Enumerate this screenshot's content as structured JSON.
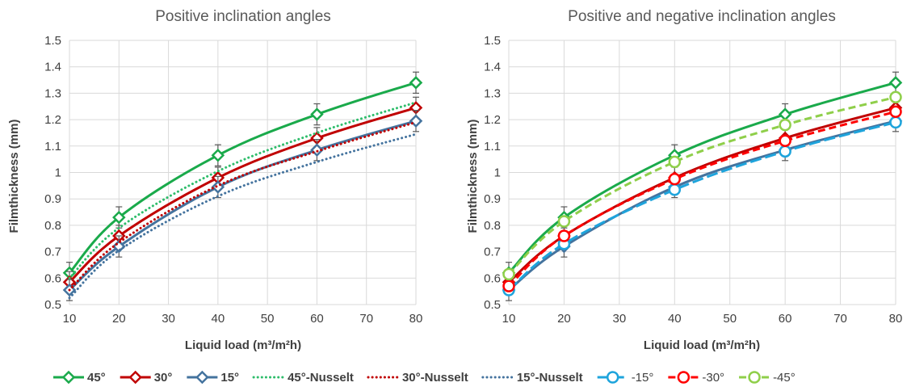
{
  "chart_data": [
    {
      "type": "line",
      "title": "Positive inclination angles",
      "xlabel": "Liquid load (m³/m²h)",
      "ylabel": "Filmthickness (mm)",
      "xlim": [
        10,
        80
      ],
      "ylim": [
        0.5,
        1.5
      ],
      "x_ticks": [
        "10",
        "20",
        "30",
        "40",
        "50",
        "60",
        "70",
        "80"
      ],
      "y_ticks": [
        "0.5",
        "0.6",
        "0.7",
        "0.8",
        "0.9",
        "1",
        "1.1",
        "1.2",
        "1.3",
        "1.4",
        "1.5"
      ],
      "grid": true,
      "series": [
        {
          "name": "45°",
          "color": "#1aaa4b",
          "style": "solid",
          "marker": "diamond",
          "x": [
            10,
            20,
            40,
            60,
            80
          ],
          "y": [
            0.62,
            0.83,
            1.065,
            1.22,
            1.34
          ],
          "err": [
            0.04,
            0.04,
            0.04,
            0.04,
            0.04
          ]
        },
        {
          "name": "30°",
          "color": "#c00000",
          "style": "solid",
          "marker": "diamond",
          "x": [
            10,
            20,
            40,
            60,
            80
          ],
          "y": [
            0.585,
            0.76,
            0.98,
            1.13,
            1.245
          ],
          "err": [
            0.04,
            0.04,
            0.04,
            0.04,
            0.04
          ]
        },
        {
          "name": "15°",
          "color": "#44739e",
          "style": "solid",
          "marker": "diamond",
          "x": [
            10,
            20,
            40,
            60,
            80
          ],
          "y": [
            0.555,
            0.72,
            0.945,
            1.085,
            1.195
          ],
          "err": [
            0.04,
            0.04,
            0.04,
            0.04,
            0.04
          ]
        },
        {
          "name": "45°-Nusselt",
          "color": "#2ebd6b",
          "style": "dotted",
          "marker": "none",
          "x": [
            10,
            20,
            40,
            60,
            80
          ],
          "y": [
            0.6,
            0.79,
            1.005,
            1.15,
            1.265
          ]
        },
        {
          "name": "30°-Nusselt",
          "color": "#c00000",
          "style": "dotted",
          "marker": "none",
          "x": [
            10,
            20,
            40,
            60,
            80
          ],
          "y": [
            0.555,
            0.735,
            0.95,
            1.08,
            1.19
          ]
        },
        {
          "name": "15°-Nusselt",
          "color": "#44739e",
          "style": "dotted",
          "marker": "none",
          "x": [
            10,
            20,
            40,
            60,
            80
          ],
          "y": [
            0.525,
            0.705,
            0.91,
            1.04,
            1.145
          ]
        }
      ]
    },
    {
      "type": "line",
      "title": "Positive and negative inclination angles",
      "xlabel": "Liquid load (m³/m²h)",
      "ylabel": "Filmthickness (mm)",
      "xlim": [
        10,
        80
      ],
      "ylim": [
        0.5,
        1.5
      ],
      "x_ticks": [
        "10",
        "20",
        "30",
        "40",
        "50",
        "60",
        "70",
        "80"
      ],
      "y_ticks": [
        "0.5",
        "0.6",
        "0.7",
        "0.8",
        "0.9",
        "1",
        "1.1",
        "1.2",
        "1.3",
        "1.4",
        "1.5"
      ],
      "grid": true,
      "series": [
        {
          "name": "45°",
          "color": "#1aaa4b",
          "style": "solid",
          "marker": "diamond",
          "x": [
            10,
            20,
            40,
            60,
            80
          ],
          "y": [
            0.62,
            0.83,
            1.065,
            1.22,
            1.34
          ],
          "err": [
            0.04,
            0.04,
            0.04,
            0.04,
            0.04
          ]
        },
        {
          "name": "30°",
          "color": "#c00000",
          "style": "solid",
          "marker": "diamond",
          "x": [
            10,
            20,
            40,
            60,
            80
          ],
          "y": [
            0.585,
            0.76,
            0.98,
            1.13,
            1.245
          ],
          "err": [
            0.04,
            0.04,
            0.04,
            0.04,
            0.04
          ]
        },
        {
          "name": "15°",
          "color": "#44739e",
          "style": "solid",
          "marker": "diamond",
          "x": [
            10,
            20,
            40,
            60,
            80
          ],
          "y": [
            0.555,
            0.72,
            0.945,
            1.085,
            1.195
          ],
          "err": [
            0.04,
            0.04,
            0.04,
            0.04,
            0.04
          ]
        },
        {
          "name": "-15°",
          "color": "#1ea4dc",
          "style": "long-dash",
          "marker": "circle",
          "x": [
            10,
            20,
            40,
            60,
            80
          ],
          "y": [
            0.555,
            0.73,
            0.935,
            1.08,
            1.19
          ]
        },
        {
          "name": "-30°",
          "color": "#ff0000",
          "style": "dashed",
          "marker": "circle",
          "x": [
            10,
            20,
            40,
            60,
            80
          ],
          "y": [
            0.57,
            0.76,
            0.975,
            1.12,
            1.23
          ]
        },
        {
          "name": "-45°",
          "color": "#8fcf4a",
          "style": "dashed",
          "marker": "circle",
          "x": [
            10,
            20,
            40,
            60,
            80
          ],
          "y": [
            0.615,
            0.815,
            1.04,
            1.18,
            1.285
          ]
        }
      ]
    }
  ],
  "legend": {
    "position": "bottom",
    "items": [
      {
        "label": "45°",
        "color": "#1aaa4b",
        "style": "solid",
        "marker": "diamond",
        "bold": true
      },
      {
        "label": "30°",
        "color": "#c00000",
        "style": "solid",
        "marker": "diamond",
        "bold": true
      },
      {
        "label": "15°",
        "color": "#44739e",
        "style": "solid",
        "marker": "diamond",
        "bold": true
      },
      {
        "label": "45°-Nusselt",
        "color": "#2ebd6b",
        "style": "dotted",
        "marker": "none",
        "bold": true
      },
      {
        "label": "30°-Nusselt",
        "color": "#c00000",
        "style": "dotted",
        "marker": "none",
        "bold": true
      },
      {
        "label": "15°-Nusselt",
        "color": "#44739e",
        "style": "dotted",
        "marker": "none",
        "bold": true
      },
      {
        "label": "-15°",
        "color": "#1ea4dc",
        "style": "long-dash",
        "marker": "circle",
        "bold": false
      },
      {
        "label": "-30°",
        "color": "#ff0000",
        "style": "dashed",
        "marker": "circle",
        "bold": false
      },
      {
        "label": "-45°",
        "color": "#8fcf4a",
        "style": "dashed",
        "marker": "circle",
        "bold": false
      }
    ]
  }
}
